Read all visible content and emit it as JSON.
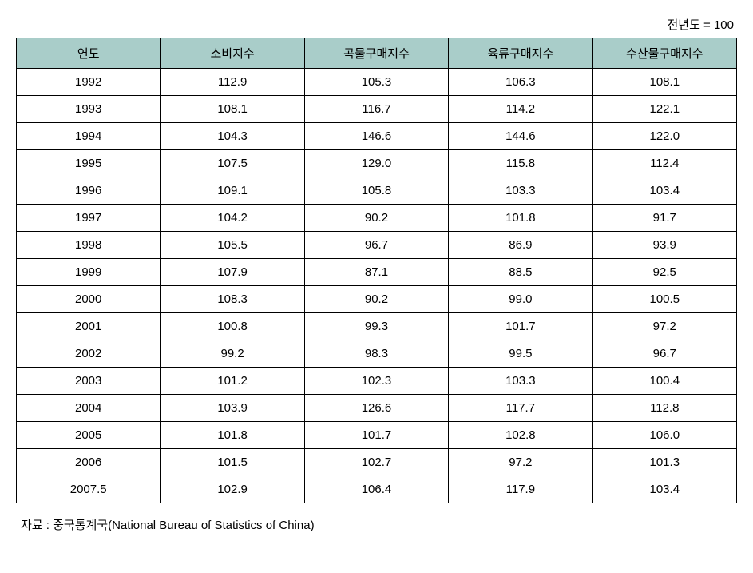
{
  "top_note": "전년도 = 100",
  "table": {
    "header_bg_color": "#a9cdc9",
    "border_color": "#000000",
    "cell_fontsize": 15,
    "columns": [
      "연도",
      "소비지수",
      "곡물구매지수",
      "육류구매지수",
      "수산물구매지수"
    ],
    "rows": [
      [
        "1992",
        "112.9",
        "105.3",
        "106.3",
        "108.1"
      ],
      [
        "1993",
        "108.1",
        "116.7",
        "114.2",
        "122.1"
      ],
      [
        "1994",
        "104.3",
        "146.6",
        "144.6",
        "122.0"
      ],
      [
        "1995",
        "107.5",
        "129.0",
        "115.8",
        "112.4"
      ],
      [
        "1996",
        "109.1",
        "105.8",
        "103.3",
        "103.4"
      ],
      [
        "1997",
        "104.2",
        "90.2",
        "101.8",
        "91.7"
      ],
      [
        "1998",
        "105.5",
        "96.7",
        "86.9",
        "93.9"
      ],
      [
        "1999",
        "107.9",
        "87.1",
        "88.5",
        "92.5"
      ],
      [
        "2000",
        "108.3",
        "90.2",
        "99.0",
        "100.5"
      ],
      [
        "2001",
        "100.8",
        "99.3",
        "101.7",
        "97.2"
      ],
      [
        "2002",
        "99.2",
        "98.3",
        "99.5",
        "96.7"
      ],
      [
        "2003",
        "101.2",
        "102.3",
        "103.3",
        "100.4"
      ],
      [
        "2004",
        "103.9",
        "126.6",
        "117.7",
        "112.8"
      ],
      [
        "2005",
        "101.8",
        "101.7",
        "102.8",
        "106.0"
      ],
      [
        "2006",
        "101.5",
        "102.7",
        "97.2",
        "101.3"
      ],
      [
        "2007.5",
        "102.9",
        "106.4",
        "117.9",
        "103.4"
      ]
    ]
  },
  "source_note": "자료 : 중국통계국(National Bureau of Statistics of China)"
}
